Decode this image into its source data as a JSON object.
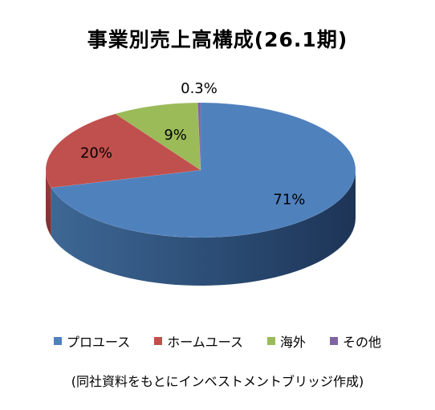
{
  "chart_data": {
    "type": "pie",
    "title": "事業別売上高構成(26.1期)",
    "categories": [
      "プロユース",
      "ホームユース",
      "海外",
      "その他"
    ],
    "values": [
      71,
      20,
      9,
      0.3
    ],
    "data_labels": [
      "71%",
      "20%",
      "9%",
      "0.3%"
    ],
    "colors": [
      "#4F81BD",
      "#C0504D",
      "#9BBB59",
      "#8064A2"
    ],
    "legend_position": "bottom",
    "style": "3d"
  },
  "note": "(同社資料をもとにインベストメントブリッジ作成)"
}
